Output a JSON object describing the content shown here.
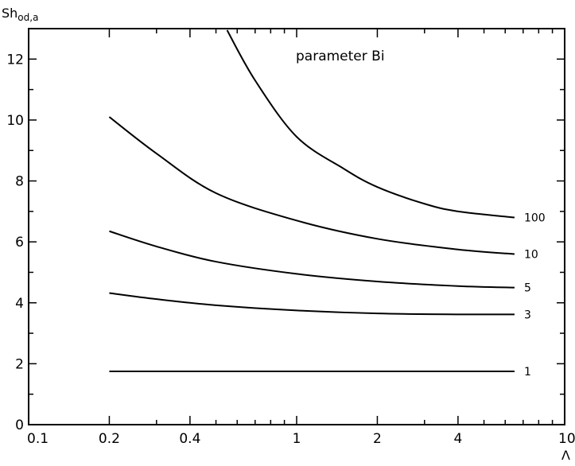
{
  "chart_data": {
    "type": "line",
    "title": "parameter  Bi",
    "ylabel_main": "Sh",
    "ylabel_sub": "od,a",
    "xlabel": "Λ",
    "x_scale": "log",
    "xlim": [
      0.1,
      10
    ],
    "ylim": [
      0,
      13
    ],
    "x_ticks": [
      0.1,
      0.2,
      0.4,
      1,
      2,
      4,
      10
    ],
    "x_tick_labels": [
      "0.1",
      "0.2",
      "0.4",
      "1",
      "2",
      "4",
      "10"
    ],
    "y_ticks": [
      0,
      2,
      4,
      6,
      8,
      10,
      12
    ],
    "y_tick_labels": [
      "0",
      "2",
      "4",
      "6",
      "8",
      "10",
      "12"
    ],
    "grid": false,
    "series": [
      {
        "name": "1",
        "x": [
          0.2,
          0.4,
          1,
          2,
          4,
          6.5
        ],
        "y": [
          1.75,
          1.75,
          1.75,
          1.75,
          1.75,
          1.75
        ]
      },
      {
        "name": "3",
        "x": [
          0.2,
          0.3,
          0.5,
          1,
          2,
          4,
          6.5
        ],
        "y": [
          4.32,
          4.12,
          3.92,
          3.75,
          3.65,
          3.62,
          3.62
        ]
      },
      {
        "name": "5",
        "x": [
          0.2,
          0.3,
          0.5,
          1,
          2,
          4,
          6.5
        ],
        "y": [
          6.35,
          5.85,
          5.35,
          4.95,
          4.7,
          4.55,
          4.5
        ]
      },
      {
        "name": "10",
        "x": [
          0.2,
          0.3,
          0.5,
          1,
          2,
          4,
          6.5
        ],
        "y": [
          10.1,
          8.9,
          7.6,
          6.7,
          6.1,
          5.75,
          5.6
        ]
      },
      {
        "name": "100",
        "x": [
          0.55,
          0.7,
          1,
          1.5,
          2,
          3,
          4,
          6.5
        ],
        "y": [
          12.95,
          11.3,
          9.45,
          8.4,
          7.8,
          7.25,
          7.0,
          6.8
        ]
      }
    ]
  }
}
